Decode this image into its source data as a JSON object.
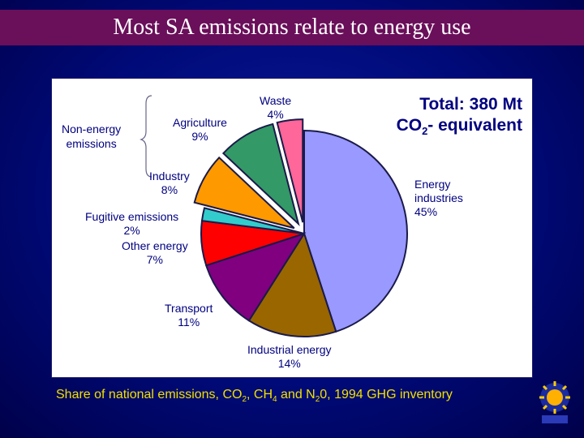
{
  "slide": {
    "title": "Most SA emissions relate to energy use",
    "total_line1": "Total: 380 Mt",
    "total_co": "CO",
    "total_sub": "2",
    "total_rest": "- equivalent",
    "nonenergy_line1": "Non-energy",
    "nonenergy_line2": "emissions",
    "caption_part1": "Share of national emissions, CO",
    "caption_sub1": "2",
    "caption_part2": ", CH",
    "caption_sub2": "4",
    "caption_part3": " and N",
    "caption_sub3": "2",
    "caption_part4": "0, 1994 GHG inventory"
  },
  "chart_data": {
    "type": "pie",
    "title": "",
    "slices": [
      {
        "label_line1": "Energy",
        "label_line2": "industries",
        "value_label": "45%",
        "value": 45,
        "color": "#9999ff",
        "exploded": false
      },
      {
        "label_line1": "Industrial energy",
        "value_label": "14%",
        "value": 14,
        "color": "#996600",
        "exploded": false
      },
      {
        "label_line1": "Transport",
        "value_label": "11%",
        "value": 11,
        "color": "#800080",
        "exploded": false
      },
      {
        "label_line1": "Other energy",
        "value_label": "7%",
        "value": 7,
        "color": "#ff0000",
        "exploded": false
      },
      {
        "label_line1": "Fugitive emissions",
        "value_label": "2%",
        "value": 2,
        "color": "#33cccc",
        "exploded": false
      },
      {
        "label_line1": "Industry",
        "value_label": "8%",
        "value": 8,
        "color": "#ff9900",
        "exploded": true
      },
      {
        "label_line1": "Agriculture",
        "value_label": "9%",
        "value": 9,
        "color": "#339966",
        "exploded": true
      },
      {
        "label_line1": "Waste",
        "value_label": "4%",
        "value": 4,
        "color": "#ff6699",
        "exploded": true
      }
    ]
  }
}
